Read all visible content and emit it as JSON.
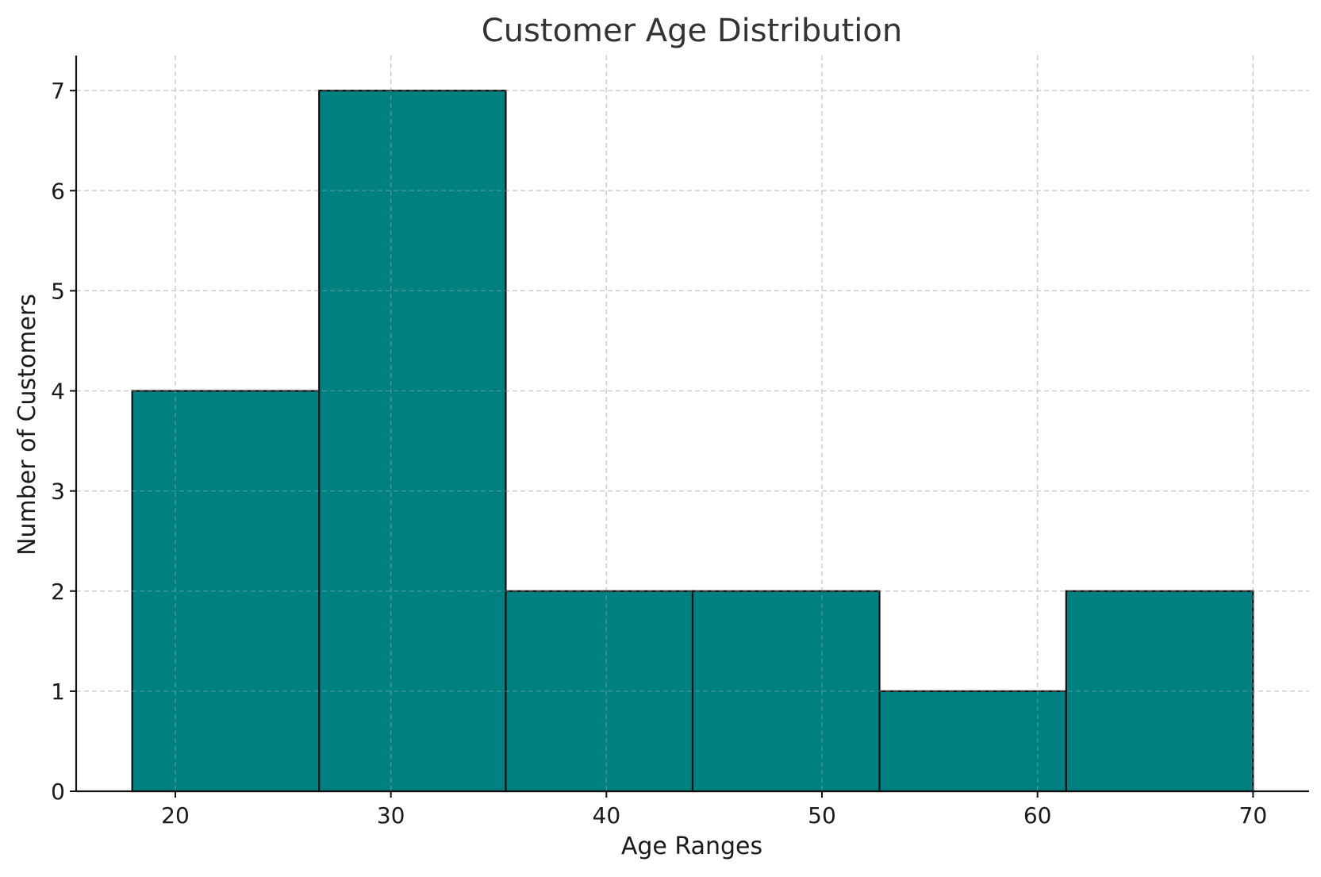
{
  "chart_data": {
    "type": "bar",
    "subtype": "histogram",
    "title": "Customer Age Distribution",
    "xlabel": "Age Ranges",
    "ylabel": "Number of Customers",
    "bins": [
      {
        "start": 18.0,
        "end": 26.67,
        "count": 4
      },
      {
        "start": 26.67,
        "end": 35.33,
        "count": 7
      },
      {
        "start": 35.33,
        "end": 44.0,
        "count": 2
      },
      {
        "start": 44.0,
        "end": 52.67,
        "count": 2
      },
      {
        "start": 52.67,
        "end": 61.33,
        "count": 1
      },
      {
        "start": 61.33,
        "end": 70.0,
        "count": 2
      }
    ],
    "xlim": [
      15.4,
      72.6
    ],
    "ylim": [
      0,
      7.35
    ],
    "xticks": [
      20,
      30,
      40,
      50,
      60,
      70
    ],
    "yticks": [
      0,
      1,
      2,
      3,
      4,
      5,
      6,
      7
    ],
    "grid": true,
    "bar_color": "#008080",
    "edge_color": "#111111",
    "grid_color": "#c8c8c8"
  }
}
